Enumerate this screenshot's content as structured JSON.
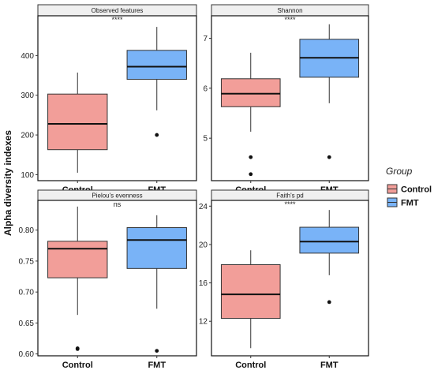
{
  "chart_data": {
    "type": "box",
    "ylabel": "Alpha diversity indexes",
    "categories": [
      "Control",
      "FMT"
    ],
    "colors": {
      "Control": "#f29e99",
      "FMT": "#79b3f7"
    },
    "legend": {
      "title": "Group",
      "position": "right",
      "items": [
        "Control",
        "FMT"
      ]
    },
    "panels": [
      {
        "title": "Observed features",
        "significance": "****",
        "ylim": [
          85,
          500
        ],
        "yticks": [
          100,
          200,
          300,
          400
        ],
        "boxes": [
          {
            "group": "Control",
            "whisker_low": 105,
            "q1": 163,
            "median": 228,
            "q3": 303,
            "whisker_high": 357,
            "outliers": []
          },
          {
            "group": "FMT",
            "whisker_low": 262,
            "q1": 340,
            "median": 372,
            "q3": 413,
            "whisker_high": 472,
            "outliers": [
              200
            ]
          }
        ]
      },
      {
        "title": "Shannon",
        "significance": "****",
        "ylim": [
          4.15,
          7.45
        ],
        "yticks": [
          5,
          6,
          7
        ],
        "boxes": [
          {
            "group": "Control",
            "whisker_low": 5.13,
            "q1": 5.63,
            "median": 5.89,
            "q3": 6.19,
            "whisker_high": 6.71,
            "outliers": [
              4.62,
              4.28
            ]
          },
          {
            "group": "FMT",
            "whisker_low": 5.7,
            "q1": 6.22,
            "median": 6.61,
            "q3": 6.98,
            "whisker_high": 7.28,
            "outliers": [
              4.62
            ]
          }
        ]
      },
      {
        "title": "Pielou's evenness",
        "significance": "ns",
        "ylim": [
          0.597,
          0.848
        ],
        "yticks": [
          0.6,
          0.65,
          0.7,
          0.75,
          0.8
        ],
        "yticklabels": [
          "0.60",
          "0.65",
          "0.70",
          "0.75",
          "0.80"
        ],
        "boxes": [
          {
            "group": "Control",
            "whisker_low": 0.663,
            "q1": 0.723,
            "median": 0.77,
            "q3": 0.782,
            "whisker_high": 0.838,
            "outliers": [
              0.609,
              0.608
            ]
          },
          {
            "group": "FMT",
            "whisker_low": 0.673,
            "q1": 0.738,
            "median": 0.784,
            "q3": 0.804,
            "whisker_high": 0.824,
            "outliers": [
              0.605
            ]
          }
        ]
      },
      {
        "title": "Faith's pd",
        "significance": "****",
        "ylim": [
          8.4,
          24.6
        ],
        "yticks": [
          12,
          16,
          20,
          24
        ],
        "boxes": [
          {
            "group": "Control",
            "whisker_low": 9.2,
            "q1": 12.3,
            "median": 14.8,
            "q3": 17.9,
            "whisker_high": 19.4,
            "outliers": []
          },
          {
            "group": "FMT",
            "whisker_low": 16.8,
            "q1": 19.1,
            "median": 20.3,
            "q3": 21.8,
            "whisker_high": 23.6,
            "outliers": [
              14.0
            ]
          }
        ]
      }
    ]
  }
}
